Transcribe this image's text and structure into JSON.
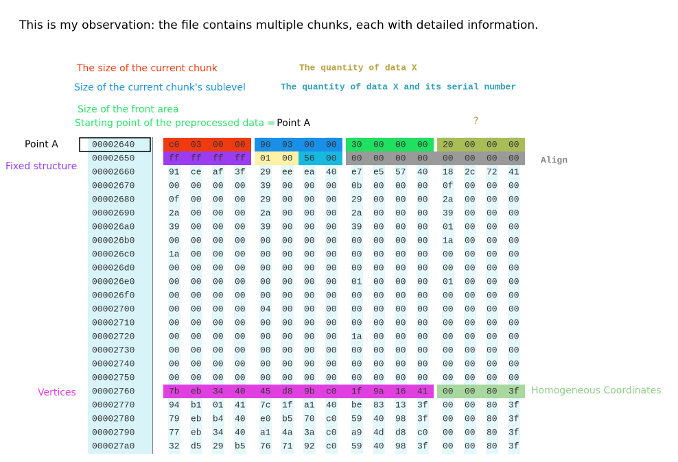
{
  "title": "This is my observation: the file contains multiple chunks, each with detailed information.",
  "annotations": {
    "chunk_size": {
      "text": "The size of the current chunk",
      "color": "#f03a10"
    },
    "sublevel_size": {
      "text": "Size of the current chunk's sublevel",
      "color": "#1a8fd8"
    },
    "front_area": {
      "text": "Size of the front area",
      "color": "#2ee06a"
    },
    "start_point": {
      "text": "Starting point of the preprocessed data = ",
      "color": "#2ee06a"
    },
    "start_point_name": {
      "text": "Point A",
      "color": "#000000"
    },
    "quantity": {
      "text": "The quantity of data X",
      "color": "#b8a040"
    },
    "quantity_serial": {
      "text": "The quantity of data X and its serial number",
      "color": "#30a0b8"
    },
    "question": {
      "text": "?",
      "color": "#b8a040"
    },
    "point_a": {
      "text": "Point A",
      "color": "#000000"
    },
    "fixed_structure": {
      "text": "Fixed structure",
      "color": "#9b3cf0"
    },
    "align": {
      "text": "Align",
      "color": "#888888"
    },
    "vertices": {
      "text": "Vertices",
      "color": "#e040e0"
    },
    "homogeneous": {
      "text": "Homogeneous Coordinates",
      "color": "#90cc88"
    }
  },
  "rows": [
    {
      "address": "00002640",
      "bytes": [
        "c0",
        "03",
        "00",
        "00",
        "90",
        "03",
        "00",
        "00",
        "30",
        "00",
        "00",
        "00",
        "20",
        "00",
        "00",
        "00"
      ]
    },
    {
      "address": "00002650",
      "bytes": [
        "ff",
        "ff",
        "ff",
        "ff",
        "01",
        "00",
        "56",
        "00",
        "00",
        "00",
        "00",
        "00",
        "00",
        "00",
        "00",
        "00"
      ]
    },
    {
      "address": "00002660",
      "bytes": [
        "91",
        "ce",
        "af",
        "3f",
        "29",
        "ee",
        "ea",
        "40",
        "e7",
        "e5",
        "57",
        "40",
        "18",
        "2c",
        "72",
        "41"
      ]
    },
    {
      "address": "00002670",
      "bytes": [
        "00",
        "00",
        "00",
        "00",
        "39",
        "00",
        "00",
        "00",
        "0b",
        "00",
        "00",
        "00",
        "0f",
        "00",
        "00",
        "00"
      ]
    },
    {
      "address": "00002680",
      "bytes": [
        "0f",
        "00",
        "00",
        "00",
        "29",
        "00",
        "00",
        "00",
        "29",
        "00",
        "00",
        "00",
        "2a",
        "00",
        "00",
        "00"
      ]
    },
    {
      "address": "00002690",
      "bytes": [
        "2a",
        "00",
        "00",
        "00",
        "2a",
        "00",
        "00",
        "00",
        "2a",
        "00",
        "00",
        "00",
        "39",
        "00",
        "00",
        "00"
      ]
    },
    {
      "address": "000026a0",
      "bytes": [
        "39",
        "00",
        "00",
        "00",
        "39",
        "00",
        "00",
        "00",
        "39",
        "00",
        "00",
        "00",
        "01",
        "00",
        "00",
        "00"
      ]
    },
    {
      "address": "000026b0",
      "bytes": [
        "00",
        "00",
        "00",
        "00",
        "00",
        "00",
        "00",
        "00",
        "00",
        "00",
        "00",
        "00",
        "1a",
        "00",
        "00",
        "00"
      ]
    },
    {
      "address": "000026c0",
      "bytes": [
        "1a",
        "00",
        "00",
        "00",
        "00",
        "00",
        "00",
        "00",
        "00",
        "00",
        "00",
        "00",
        "00",
        "00",
        "00",
        "00"
      ]
    },
    {
      "address": "000026d0",
      "bytes": [
        "00",
        "00",
        "00",
        "00",
        "00",
        "00",
        "00",
        "00",
        "00",
        "00",
        "00",
        "00",
        "00",
        "00",
        "00",
        "00"
      ]
    },
    {
      "address": "000026e0",
      "bytes": [
        "00",
        "00",
        "00",
        "00",
        "00",
        "00",
        "00",
        "00",
        "01",
        "00",
        "00",
        "00",
        "01",
        "00",
        "00",
        "00"
      ]
    },
    {
      "address": "000026f0",
      "bytes": [
        "00",
        "00",
        "00",
        "00",
        "00",
        "00",
        "00",
        "00",
        "00",
        "00",
        "00",
        "00",
        "00",
        "00",
        "00",
        "00"
      ]
    },
    {
      "address": "00002700",
      "bytes": [
        "00",
        "00",
        "00",
        "00",
        "04",
        "00",
        "00",
        "00",
        "00",
        "00",
        "00",
        "00",
        "00",
        "00",
        "00",
        "00"
      ]
    },
    {
      "address": "00002710",
      "bytes": [
        "00",
        "00",
        "00",
        "00",
        "00",
        "00",
        "00",
        "00",
        "00",
        "00",
        "00",
        "00",
        "00",
        "00",
        "00",
        "00"
      ]
    },
    {
      "address": "00002720",
      "bytes": [
        "00",
        "00",
        "00",
        "00",
        "00",
        "00",
        "00",
        "00",
        "1a",
        "00",
        "00",
        "00",
        "00",
        "00",
        "00",
        "00"
      ]
    },
    {
      "address": "00002730",
      "bytes": [
        "00",
        "00",
        "00",
        "00",
        "00",
        "00",
        "00",
        "00",
        "00",
        "00",
        "00",
        "00",
        "00",
        "00",
        "00",
        "00"
      ]
    },
    {
      "address": "00002740",
      "bytes": [
        "00",
        "00",
        "00",
        "00",
        "00",
        "00",
        "00",
        "00",
        "00",
        "00",
        "00",
        "00",
        "00",
        "00",
        "00",
        "00"
      ]
    },
    {
      "address": "00002750",
      "bytes": [
        "00",
        "00",
        "00",
        "00",
        "00",
        "00",
        "00",
        "00",
        "00",
        "00",
        "00",
        "00",
        "00",
        "00",
        "00",
        "00"
      ]
    },
    {
      "address": "00002760",
      "bytes": [
        "7b",
        "eb",
        "34",
        "40",
        "45",
        "d8",
        "9b",
        "c0",
        "1f",
        "9a",
        "16",
        "41",
        "00",
        "00",
        "80",
        "3f"
      ]
    },
    {
      "address": "00002770",
      "bytes": [
        "94",
        "b1",
        "01",
        "41",
        "7c",
        "1f",
        "a1",
        "40",
        "be",
        "83",
        "13",
        "3f",
        "00",
        "00",
        "80",
        "3f"
      ]
    },
    {
      "address": "00002780",
      "bytes": [
        "79",
        "eb",
        "b4",
        "40",
        "e0",
        "b5",
        "70",
        "c0",
        "59",
        "40",
        "98",
        "3f",
        "00",
        "00",
        "80",
        "3f"
      ]
    },
    {
      "address": "00002790",
      "bytes": [
        "77",
        "eb",
        "34",
        "40",
        "a1",
        "4a",
        "3a",
        "c0",
        "a9",
        "4d",
        "d8",
        "c0",
        "00",
        "00",
        "80",
        "3f"
      ]
    },
    {
      "address": "000027a0",
      "bytes": [
        "32",
        "d5",
        "29",
        "b5",
        "76",
        "71",
        "92",
        "c0",
        "59",
        "40",
        "98",
        "3f",
        "00",
        "00",
        "80",
        "3f"
      ]
    }
  ],
  "highlights": [
    {
      "row": 0,
      "from": 0,
      "to": 3,
      "color": "#f03a10"
    },
    {
      "row": 0,
      "from": 4,
      "to": 7,
      "color": "#1a8fe8"
    },
    {
      "row": 0,
      "from": 8,
      "to": 11,
      "color": "#20e060"
    },
    {
      "row": 0,
      "from": 12,
      "to": 15,
      "color": "#a8bc58"
    },
    {
      "row": 1,
      "from": 0,
      "to": 3,
      "color": "#9b3cf0"
    },
    {
      "row": 1,
      "from": 4,
      "to": 5,
      "color": "#fff2a8"
    },
    {
      "row": 1,
      "from": 6,
      "to": 7,
      "color": "#18b8e0"
    },
    {
      "row": 1,
      "from": 8,
      "to": 15,
      "color": "#9a9a9a"
    },
    {
      "row": 18,
      "from": 0,
      "to": 11,
      "color": "#e040e0"
    },
    {
      "row": 18,
      "from": 12,
      "to": 15,
      "color": "#a8d8a0"
    }
  ]
}
